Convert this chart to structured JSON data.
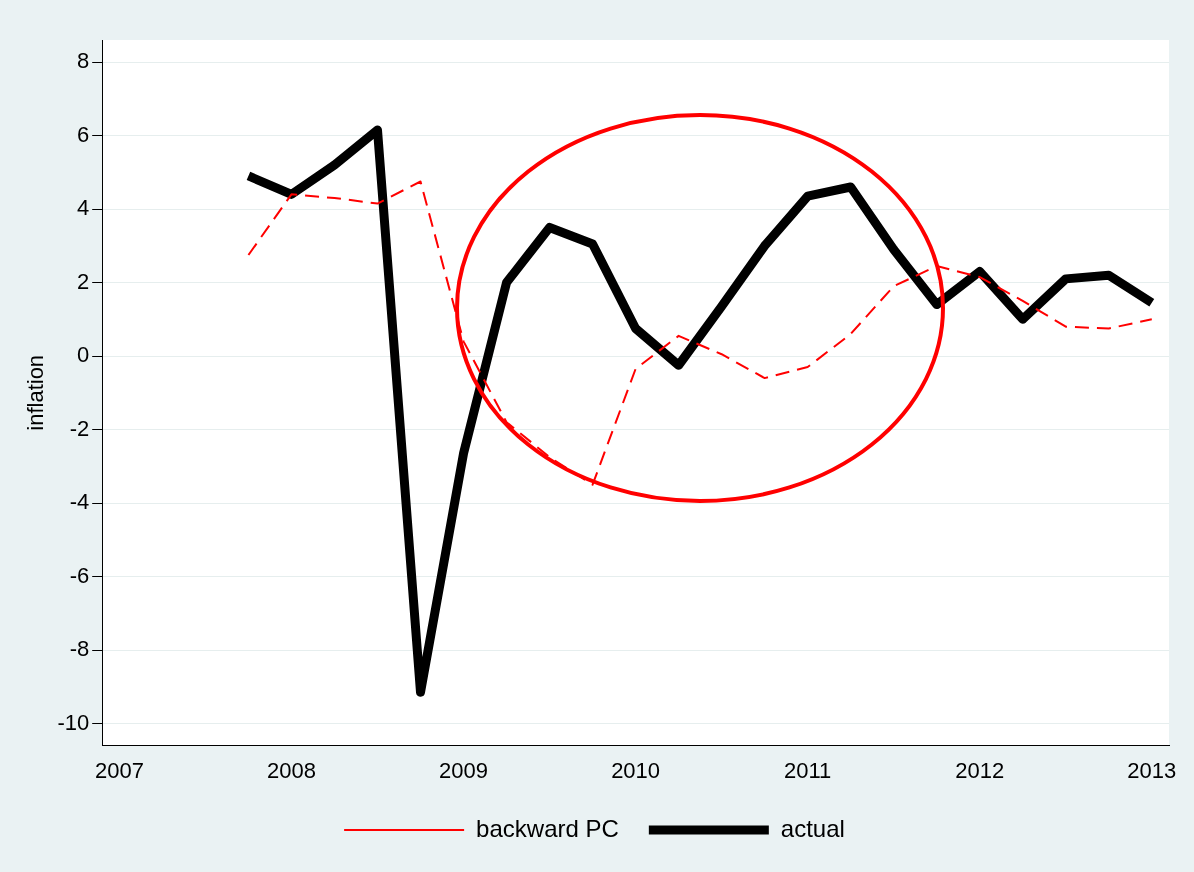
{
  "chart_data": {
    "type": "line",
    "ylabel": "inflation",
    "x": [
      2007.75,
      2008,
      2008.25,
      2008.5,
      2008.75,
      2009,
      2009.25,
      2009.5,
      2009.75,
      2010,
      2010.25,
      2010.5,
      2010.75,
      2011,
      2011.25,
      2011.5,
      2011.75,
      2012,
      2012.25,
      2012.5,
      2012.75,
      2013
    ],
    "series": [
      {
        "name": "actual",
        "color": "#000000",
        "line_style": "solid",
        "values": [
          4.9,
          4.4,
          5.2,
          6.15,
          -9.15,
          -2.65,
          2.0,
          3.5,
          3.05,
          0.75,
          -0.25,
          1.35,
          3.0,
          4.35,
          4.6,
          2.9,
          1.4,
          2.3,
          1.0,
          2.1,
          2.2,
          1.45
        ]
      },
      {
        "name": "backward PC",
        "color": "#ff0000",
        "line_style": "dashed",
        "values": [
          2.75,
          4.4,
          4.3,
          4.15,
          4.75,
          0.4,
          -1.8,
          -2.75,
          -3.5,
          -0.35,
          0.55,
          0.05,
          -0.6,
          -0.3,
          0.6,
          1.9,
          2.45,
          2.15,
          1.5,
          0.8,
          0.75,
          1.0
        ]
      }
    ],
    "xlim": [
      2006.9,
      2013.1
    ],
    "xticks": [
      2007,
      2008,
      2009,
      2010,
      2011,
      2012,
      2013
    ],
    "ylim": [
      -10.6,
      8.6
    ],
    "yticks": [
      -10,
      -8,
      -6,
      -4,
      -2,
      0,
      2,
      4,
      6,
      8
    ],
    "grid": "y",
    "legend": "bottom",
    "marker": "none"
  }
}
